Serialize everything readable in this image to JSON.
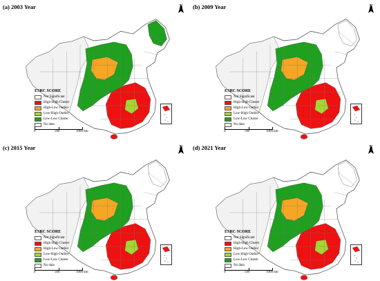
{
  "panels": [
    {
      "id": "a",
      "title": "(a) 2003 Year",
      "colors": {
        "west": "#f2f2f2",
        "main": "#1fa01f",
        "sub": "#f6a623",
        "se": "#ee1111",
        "lh": "#a6d631",
        "ne": "#1fa01f"
      },
      "scale_ticks": [
        "0",
        "500",
        "1000 km"
      ]
    },
    {
      "id": "b",
      "title": "(b) 2009 Year",
      "colors": {
        "west": "#f2f2f2",
        "main": "#1fa01f",
        "sub": "#f6a623",
        "se": "#ee1111",
        "lh": "#a6d631",
        "ne": "#ffffff"
      },
      "scale_ticks": [
        "0",
        "500",
        "1000 km"
      ]
    },
    {
      "id": "c",
      "title": "(c) 2015 Year",
      "colors": {
        "west": "#f2f2f2",
        "main": "#1fa01f",
        "sub": "#f6a623",
        "se": "#ee1111",
        "lh": "#a6d631",
        "ne": "#ffffff"
      },
      "scale_ticks": [
        "0",
        "500",
        "1000 km"
      ]
    },
    {
      "id": "d",
      "title": "(d) 2021 Year",
      "colors": {
        "west": "#f2f2f2",
        "main": "#1fa01f",
        "sub": "#f6a623",
        "se": "#ee1111",
        "lh": "#a6d631",
        "ne": "#ffffff"
      },
      "scale_ticks": [
        "0",
        "500",
        "1000 km"
      ]
    }
  ],
  "legend": {
    "title": "ESRC SCORE",
    "items": [
      {
        "label": "Not Significant",
        "color": "#ffffff"
      },
      {
        "label": "High-High Cluster",
        "color": "#ee1111"
      },
      {
        "label": "High-Low Outlier",
        "color": "#f6a623"
      },
      {
        "label": "Low-High Outlier",
        "color": "#a6d631"
      },
      {
        "label": "Low-Low Cluster",
        "color": "#1fa01f"
      },
      {
        "label": "No data",
        "color": "#f2f2f2"
      }
    ]
  },
  "north_label": "N"
}
